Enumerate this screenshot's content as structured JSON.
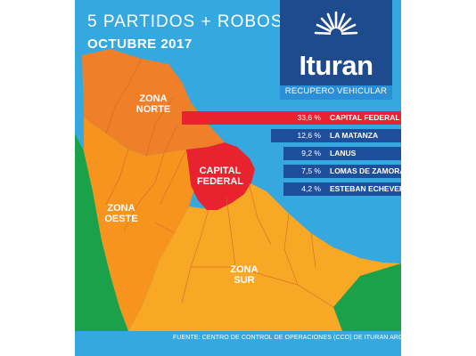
{
  "title": {
    "line1": "5 PARTIDOS + ROBOS",
    "line2": "OCTUBRE 2017"
  },
  "logo": {
    "name": "Ituran",
    "subtitle": "RECUPERO VEHICULAR"
  },
  "regions": {
    "norte": {
      "line1": "ZONA",
      "line2": "NORTE"
    },
    "capital": {
      "line1": "CAPITAL",
      "line2": "FEDERAL"
    },
    "oeste": {
      "line1": "ZONA",
      "line2": "OESTE"
    },
    "sur": {
      "line1": "ZONA",
      "line2": "SUR"
    }
  },
  "ranking": [
    {
      "value": "33,6 %",
      "percent": 33.6,
      "label": "CAPITAL FEDERAL",
      "color": "#e8232f"
    },
    {
      "value": "12,6 %",
      "percent": 12.6,
      "label": "LA MATANZA",
      "color": "#1e4f9c"
    },
    {
      "value": "9,2 %",
      "percent": 9.2,
      "label": "LANUS",
      "color": "#1e4f9c"
    },
    {
      "value": "7,5 %",
      "percent": 7.5,
      "label": "LOMAS DE ZAMORA",
      "color": "#1e4f9c"
    },
    {
      "value": "4,2 %",
      "percent": 4.2,
      "label": "ESTEBAN ECHEVERRIA",
      "color": "#1e4f9c"
    }
  ],
  "footer": "FUENTE: CENTRO DE CONTROL DE OPERACIONES (CCO) DE ITURAN ARGENTINA",
  "colors": {
    "water": "#35a8e0",
    "norte": "#f07f2a",
    "oeste": "#f7941d",
    "sur": "#f9a825",
    "capital": "#e8232f",
    "green": "#1aa14a",
    "logo_bg": "#1e4a8e",
    "bar_blue": "#1e4f9c"
  }
}
